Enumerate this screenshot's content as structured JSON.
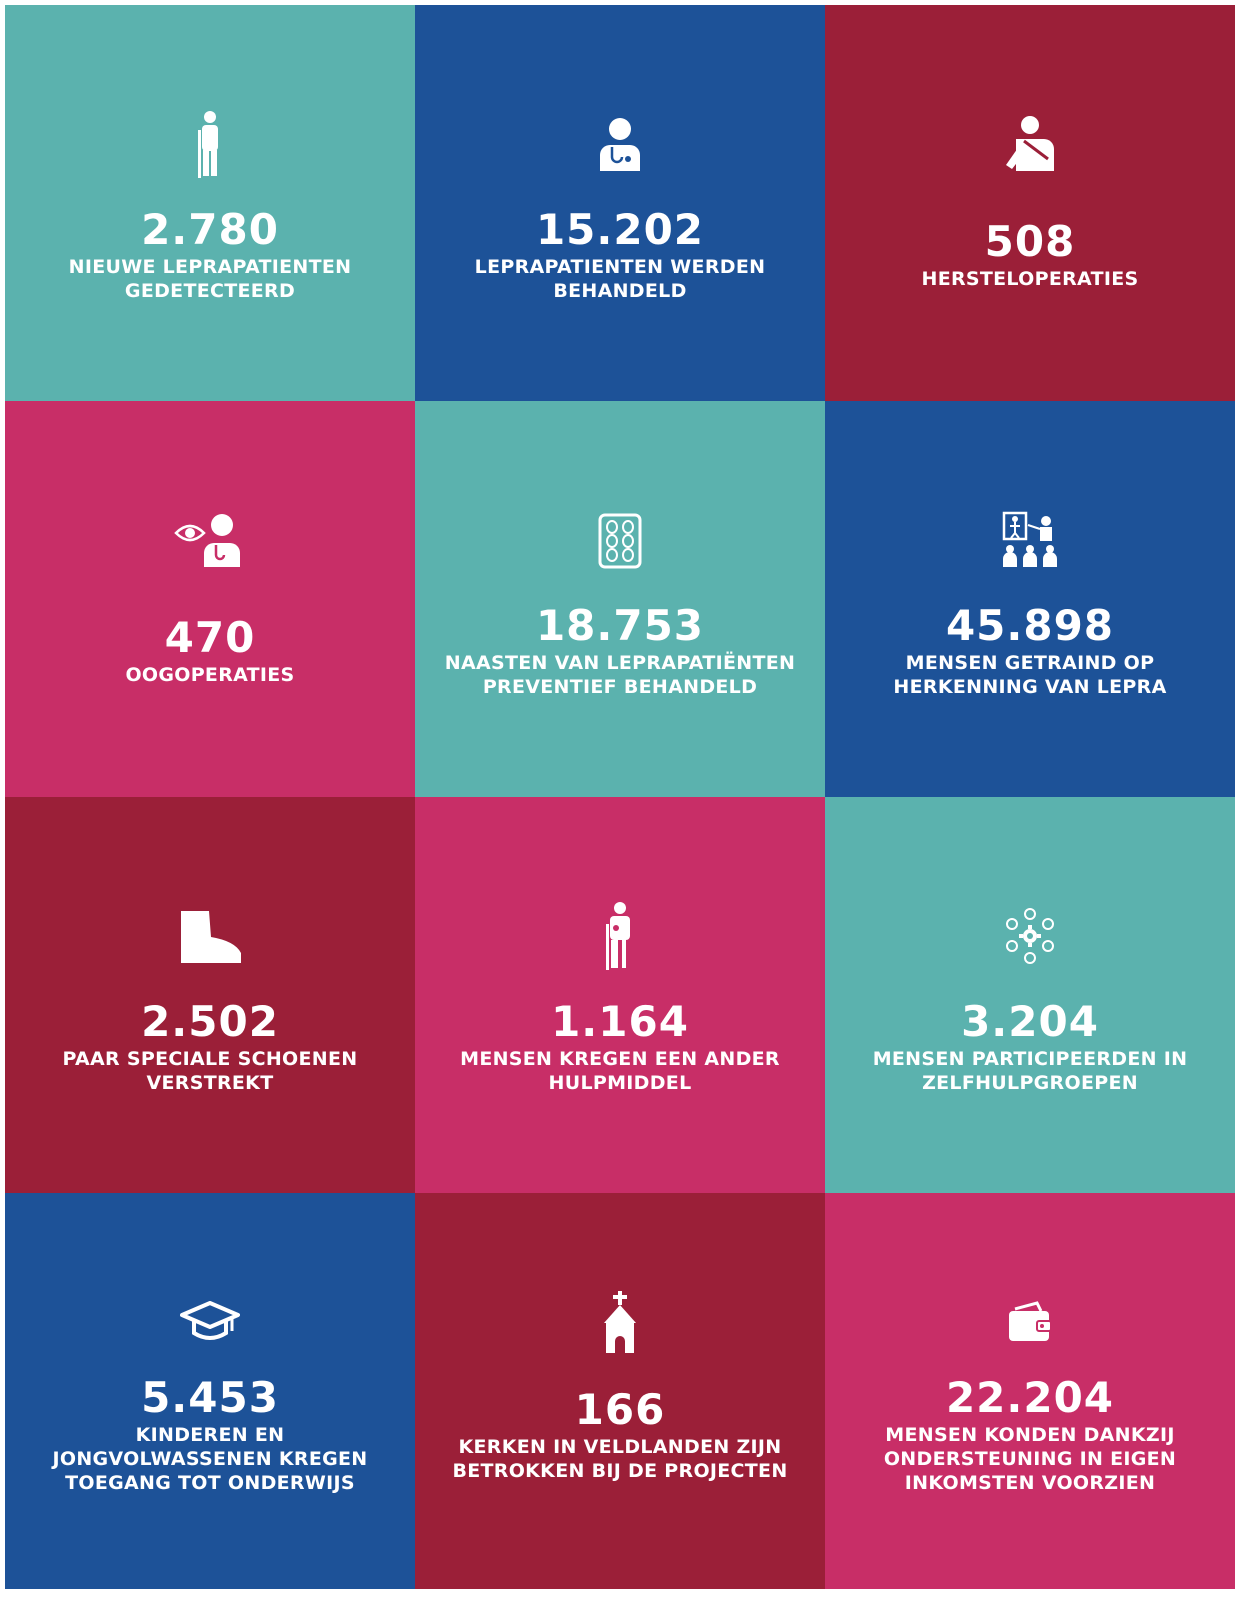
{
  "colors": {
    "teal": "#5bb2ae",
    "blue": "#1d5298",
    "burgundy": "#9b1f38",
    "pink": "#c82e67"
  },
  "tiles": [
    {
      "number": "2.780",
      "label": "NIEUWE LEPRAPATIENTEN GEDETECTEERD",
      "icon": "person-with-crutch-icon",
      "color": "#5bb2ae"
    },
    {
      "number": "15.202",
      "label": "LEPRAPATIENTEN WERDEN BEHANDELD",
      "icon": "doctor-icon",
      "color": "#1d5298"
    },
    {
      "number": "508",
      "label": "HERSTELOPERATIES",
      "icon": "arm-sling-icon",
      "color": "#9b1f38"
    },
    {
      "number": "470",
      "label": "OOGOPERATIES",
      "icon": "eye-doctor-icon",
      "color": "#c82e67"
    },
    {
      "number": "18.753",
      "label": "NAASTEN VAN LEPRAPATIËNTEN PREVENTIEF BEHANDELD",
      "icon": "pill-pack-icon",
      "color": "#5bb2ae"
    },
    {
      "number": "45.898",
      "label": "MENSEN GETRAIND OP HERKENNING VAN LEPRA",
      "icon": "training-presentation-icon",
      "color": "#1d5298"
    },
    {
      "number": "2.502",
      "label": "PAAR SPECIALE SCHOENEN VERSTREKT",
      "icon": "boot-icon",
      "color": "#9b1f38"
    },
    {
      "number": "1.164",
      "label": "MENSEN KREGEN EEN ANDER HULPMIDDEL",
      "icon": "prosthesis-icon",
      "color": "#c82e67"
    },
    {
      "number": "3.204",
      "label": "MENSEN PARTICIPEERDEN IN ZELFHULPGROEPEN",
      "icon": "self-help-group-icon",
      "color": "#5bb2ae"
    },
    {
      "number": "5.453",
      "label": "KINDEREN EN JONGVOLWASSENEN KREGEN TOEGANG TOT ONDERWIJS",
      "icon": "graduation-cap-icon",
      "color": "#1d5298"
    },
    {
      "number": "166",
      "label": "KERKEN IN VELDLANDEN ZIJN BETROKKEN BIJ DE PROJECTEN",
      "icon": "church-icon",
      "color": "#9b1f38"
    },
    {
      "number": "22.204",
      "label": "MENSEN KONDEN DANKZIJ ONDERSTEUNING IN EIGEN INKOMSTEN VOORZIEN",
      "icon": "wallet-icon",
      "color": "#c82e67"
    }
  ]
}
